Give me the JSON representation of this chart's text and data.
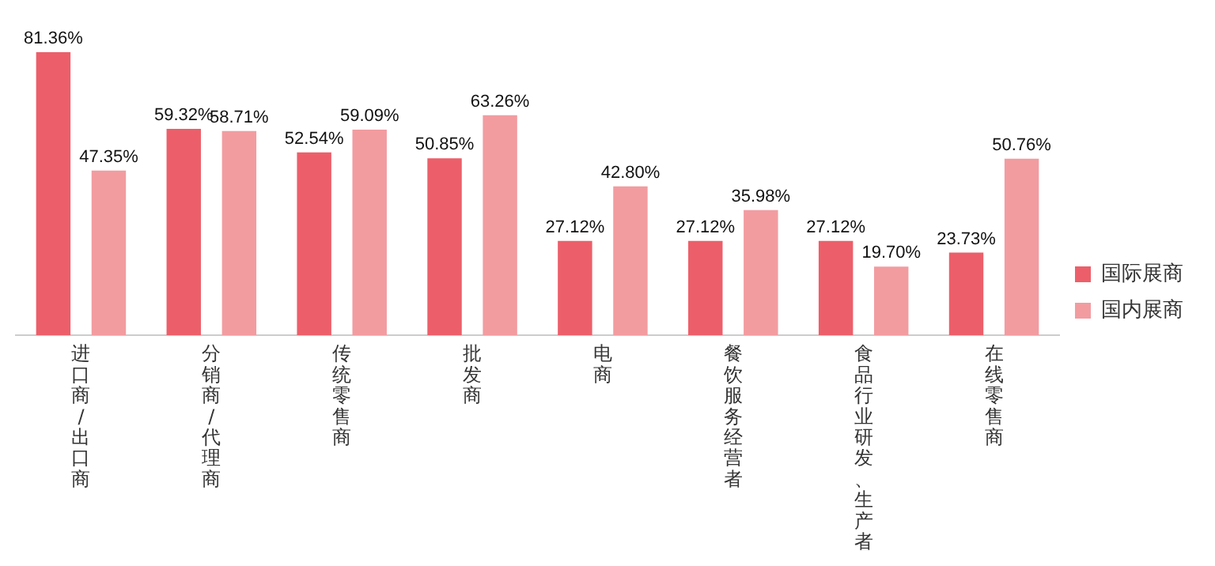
{
  "chart_data": {
    "type": "bar",
    "categories": [
      "进口商/出口商",
      "分销商/代理商",
      "传统零售商",
      "批发商",
      "电商",
      "餐饮服务经营者",
      "食品行业研发、生产者",
      "在线零售商"
    ],
    "series": [
      {
        "name": "国际展商",
        "color": "#ec5f6a",
        "values": [
          81.36,
          59.32,
          52.54,
          50.85,
          27.12,
          27.12,
          27.12,
          23.73
        ],
        "value_labels": [
          "81.36%",
          "59.32%",
          "52.54%",
          "50.85%",
          "27.12%",
          "27.12%",
          "27.12%",
          "23.73%"
        ]
      },
      {
        "name": "国内展商",
        "color": "#f29ca0",
        "values": [
          47.35,
          58.71,
          59.09,
          63.26,
          42.8,
          35.98,
          19.7,
          50.76
        ],
        "value_labels": [
          "47.35%",
          "58.71%",
          "59.09%",
          "63.26%",
          "42.80%",
          "35.98%",
          "19.70%",
          "50.76%"
        ]
      }
    ],
    "legend": "right",
    "grid": false
  }
}
